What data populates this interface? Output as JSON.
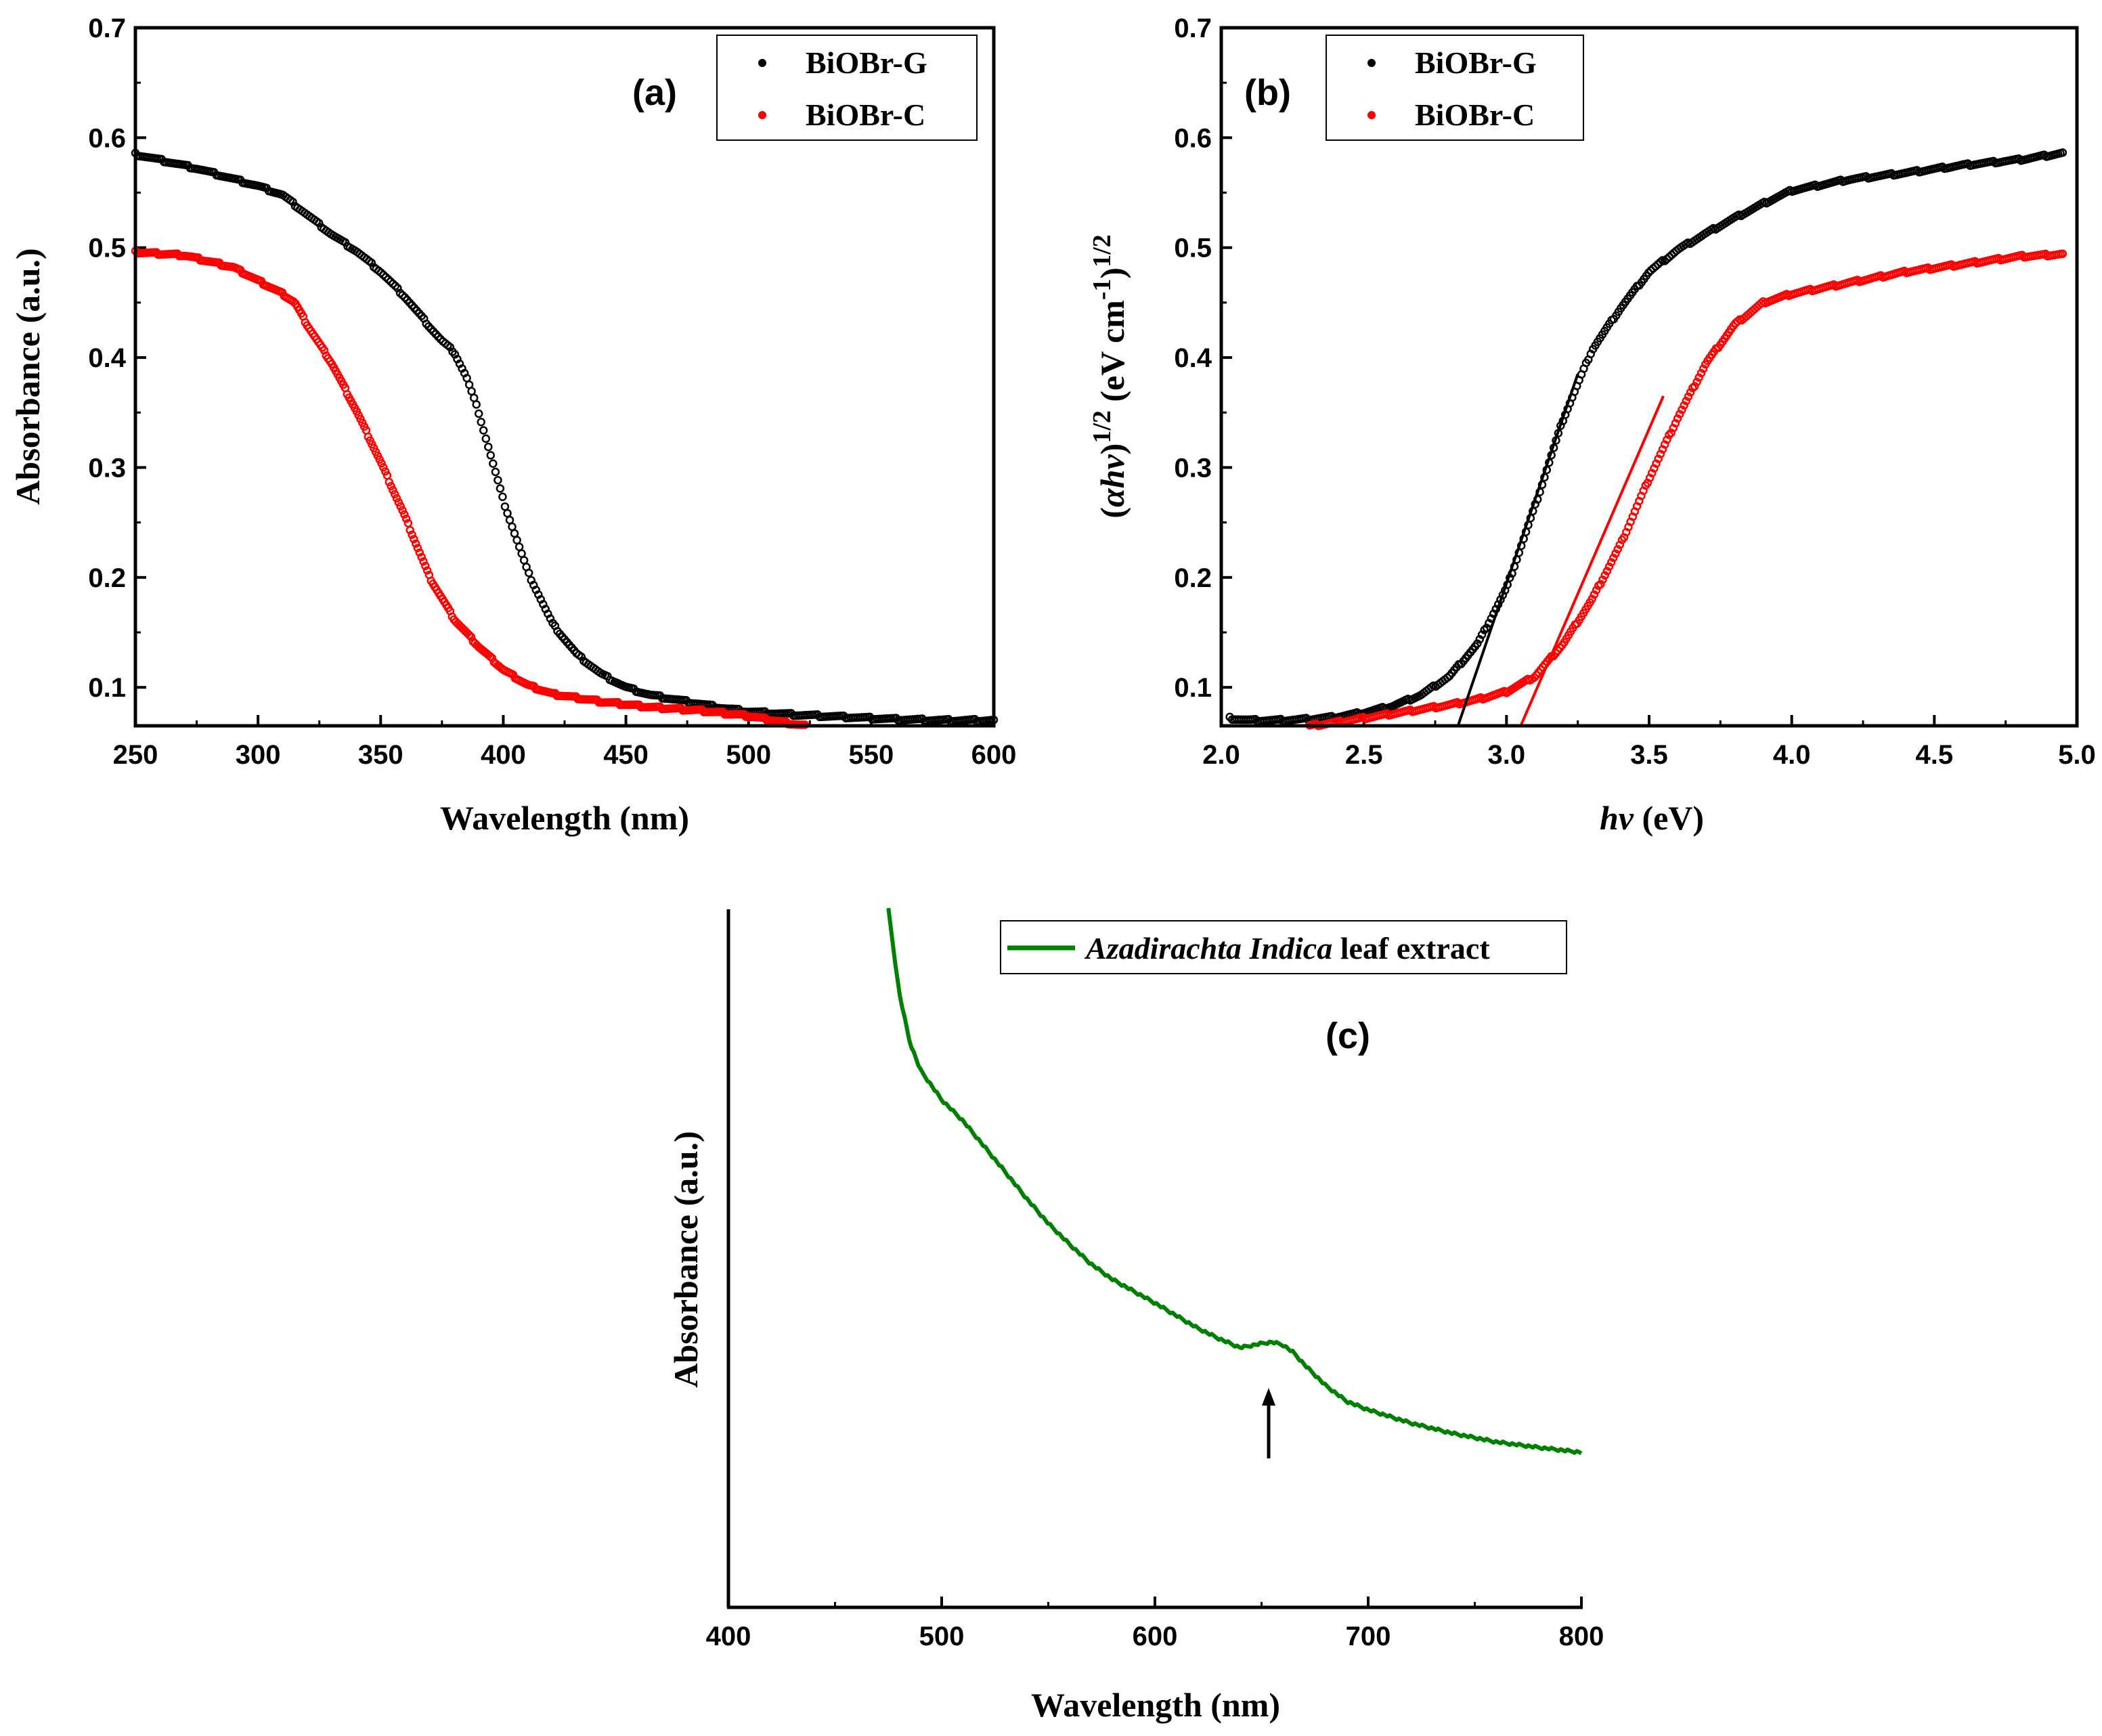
{
  "chart_data": [
    {
      "id": "a",
      "type": "scatter",
      "panel_label": "(a)",
      "xlabel": "Wavelength (nm)",
      "ylabel": "Absorbance (a.u.)",
      "xlim": [
        250,
        600
      ],
      "ylim": [
        0.065,
        0.7
      ],
      "x_ticks": [
        250,
        300,
        350,
        400,
        450,
        500,
        550,
        600
      ],
      "x_tick_labels": [
        "250",
        "300",
        "350",
        "400",
        "450",
        "500",
        "550",
        "600"
      ],
      "y_ticks": [
        0.1,
        0.2,
        0.3,
        0.4,
        0.5,
        0.6,
        0.7
      ],
      "y_tick_labels": [
        "0.1",
        "0.2",
        "0.3",
        "0.4",
        "0.5",
        "0.6",
        "0.7"
      ],
      "legend_position": "top-right",
      "series": [
        {
          "name": "BiOBr-G",
          "color": "#000000",
          "x": [
            250,
            275,
            300,
            310,
            320,
            330,
            340,
            350,
            360,
            370,
            375,
            380,
            385,
            390,
            395,
            400,
            410,
            420,
            430,
            440,
            450,
            460,
            470,
            480,
            490,
            500,
            520,
            540,
            560,
            580,
            600
          ],
          "y": [
            0.585,
            0.572,
            0.556,
            0.548,
            0.53,
            0.512,
            0.497,
            0.478,
            0.455,
            0.428,
            0.415,
            0.405,
            0.382,
            0.35,
            0.31,
            0.27,
            0.205,
            0.158,
            0.13,
            0.112,
            0.1,
            0.093,
            0.089,
            0.085,
            0.081,
            0.078,
            0.075,
            0.073,
            0.071,
            0.07,
            0.07
          ]
        },
        {
          "name": "BiOBr-C",
          "color": "#ff0000",
          "x": [
            250,
            270,
            290,
            300,
            310,
            315,
            320,
            330,
            340,
            350,
            360,
            370,
            380,
            390,
            400,
            410,
            420,
            440,
            460,
            480,
            500,
            510,
            520,
            530
          ],
          "y": [
            0.496,
            0.493,
            0.482,
            0.47,
            0.458,
            0.45,
            0.43,
            0.395,
            0.352,
            0.305,
            0.255,
            0.2,
            0.162,
            0.137,
            0.116,
            0.102,
            0.094,
            0.087,
            0.082,
            0.079,
            0.074,
            0.07,
            0.066,
            0.063
          ]
        }
      ]
    },
    {
      "id": "b",
      "type": "scatter",
      "panel_label": "(b)",
      "xlabel": "hν (eV)",
      "ylabel": "(αhν)1/2 (eV cm-1)1/2",
      "xlim": [
        2.0,
        5.0
      ],
      "ylim": [
        0.065,
        0.7
      ],
      "x_ticks": [
        2.0,
        2.5,
        3.0,
        3.5,
        4.0,
        4.5,
        5.0
      ],
      "x_tick_labels": [
        "2.0",
        "2.5",
        "3.0",
        "3.5",
        "4.0",
        "4.5",
        "5.0"
      ],
      "y_ticks": [
        0.1,
        0.2,
        0.3,
        0.4,
        0.5,
        0.6,
        0.7
      ],
      "y_tick_labels": [
        "0.1",
        "0.2",
        "0.3",
        "0.4",
        "0.5",
        "0.6",
        "0.7"
      ],
      "legend_position": "top-left",
      "series": [
        {
          "name": "BiOBr-G",
          "color": "#000000",
          "x": [
            2.03,
            2.1,
            2.2,
            2.3,
            2.4,
            2.5,
            2.6,
            2.7,
            2.8,
            2.9,
            3.0,
            3.1,
            3.2,
            3.3,
            3.4,
            3.5,
            3.6,
            3.7,
            3.8,
            3.9,
            4.0,
            4.2,
            4.4,
            4.6,
            4.8,
            4.95
          ],
          "y": [
            0.072,
            0.07,
            0.07,
            0.071,
            0.073,
            0.077,
            0.083,
            0.093,
            0.11,
            0.14,
            0.19,
            0.265,
            0.345,
            0.407,
            0.445,
            0.478,
            0.498,
            0.513,
            0.527,
            0.54,
            0.552,
            0.562,
            0.568,
            0.575,
            0.58,
            0.586
          ]
        },
        {
          "name": "BiOBr-C",
          "color": "#ff0000",
          "x": [
            2.25,
            2.4,
            2.5,
            2.6,
            2.7,
            2.8,
            2.9,
            3.0,
            3.1,
            3.2,
            3.3,
            3.4,
            3.5,
            3.6,
            3.7,
            3.8,
            3.9,
            4.0,
            4.2,
            4.4,
            4.6,
            4.8,
            4.95
          ],
          "y": [
            0.063,
            0.068,
            0.072,
            0.076,
            0.08,
            0.084,
            0.089,
            0.096,
            0.11,
            0.14,
            0.18,
            0.23,
            0.29,
            0.345,
            0.395,
            0.43,
            0.45,
            0.458,
            0.468,
            0.478,
            0.485,
            0.492,
            0.494
          ]
        }
      ],
      "fit_lines": [
        {
          "color": "#000000",
          "x": [
            2.83,
            3.25
          ],
          "y": [
            0.065,
            0.385
          ]
        },
        {
          "color": "#ff0000",
          "x": [
            3.05,
            3.55
          ],
          "y": [
            0.065,
            0.365
          ]
        }
      ]
    },
    {
      "id": "c",
      "type": "line",
      "panel_label": "(c)",
      "xlabel": "Wavelength (nm)",
      "ylabel": "Absorbance (a.u.)",
      "xlim": [
        400,
        800
      ],
      "ylim": [
        0,
        1
      ],
      "x_ticks": [
        400,
        500,
        600,
        700,
        800
      ],
      "x_tick_labels": [
        "400",
        "500",
        "600",
        "700",
        "800"
      ],
      "legend_position": "top-right",
      "legend_italic": "Azadirachta Indica",
      "legend_rest": " leaf extract",
      "annotation": "arrow",
      "series": [
        {
          "name": "Azadirachta Indica leaf extract",
          "color": "#008000",
          "x": [
            475,
            480,
            485,
            490,
            500,
            510,
            520,
            530,
            540,
            550,
            560,
            570,
            580,
            590,
            600,
            610,
            620,
            630,
            640,
            650,
            655,
            660,
            665,
            670,
            680,
            690,
            700,
            720,
            740,
            760,
            780,
            800
          ],
          "y": [
            1.0,
            0.882,
            0.81,
            0.77,
            0.727,
            0.697,
            0.66,
            0.623,
            0.585,
            0.55,
            0.52,
            0.492,
            0.47,
            0.453,
            0.436,
            0.418,
            0.4,
            0.385,
            0.372,
            0.378,
            0.38,
            0.376,
            0.365,
            0.348,
            0.318,
            0.295,
            0.283,
            0.264,
            0.249,
            0.237,
            0.229,
            0.222
          ]
        }
      ]
    }
  ]
}
